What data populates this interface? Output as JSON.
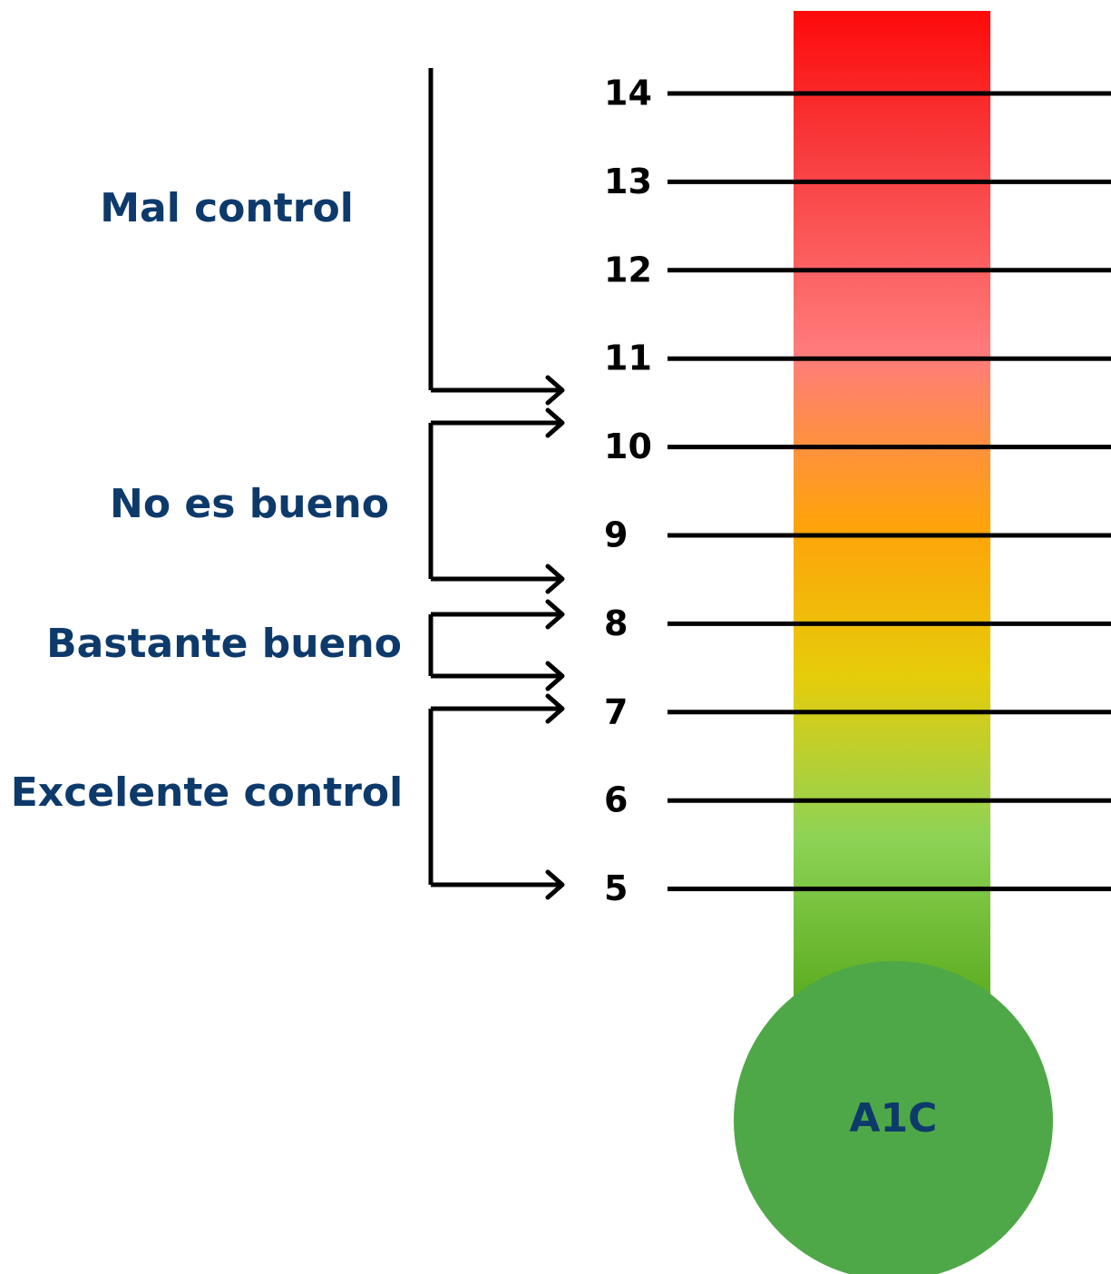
{
  "scale": [
    14,
    13,
    12,
    11,
    10,
    9,
    8,
    7,
    6,
    5
  ],
  "ranges": [
    {
      "label": "Mal control"
    },
    {
      "label": "No es bueno"
    },
    {
      "label": "Bastante bueno"
    },
    {
      "label": "Excelente control"
    }
  ],
  "bulb": {
    "label": "A1C"
  }
}
